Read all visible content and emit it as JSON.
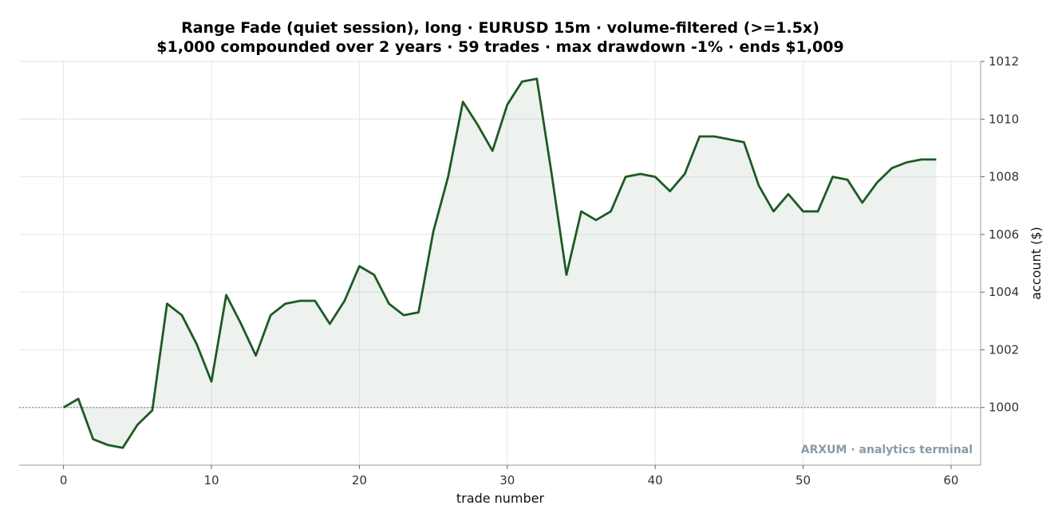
{
  "chart_data": {
    "type": "area",
    "title": "Range Fade (quiet session), long · EURUSD 15m · volume-filtered (>=1.5x)",
    "subtitle": "$1,000 compounded over 2 years · 59 trades · max drawdown -1% · ends $1,009",
    "xlabel": "trade number",
    "ylabel": "account ($)",
    "xlim": [
      -3,
      62
    ],
    "ylim": [
      998,
      1012
    ],
    "xticks": [
      0,
      10,
      20,
      30,
      40,
      50,
      60
    ],
    "yticks": [
      1000,
      1002,
      1004,
      1006,
      1008,
      1010,
      1012
    ],
    "baseline": 1000,
    "grid": true,
    "y_axis_side": "right",
    "x": [
      0,
      1,
      2,
      3,
      4,
      5,
      6,
      7,
      8,
      9,
      10,
      11,
      12,
      13,
      14,
      15,
      16,
      17,
      18,
      19,
      20,
      21,
      22,
      23,
      24,
      25,
      26,
      27,
      28,
      29,
      30,
      31,
      32,
      33,
      34,
      35,
      36,
      37,
      38,
      39,
      40,
      41,
      42,
      43,
      44,
      45,
      46,
      47,
      48,
      49,
      50,
      51,
      52,
      53,
      54,
      55,
      56,
      57,
      58,
      59
    ],
    "series": [
      {
        "values": [
          1000.0,
          1000.3,
          998.9,
          998.7,
          998.6,
          999.4,
          999.9,
          1003.6,
          1003.2,
          1002.2,
          1000.9,
          1003.9,
          1002.9,
          1001.8,
          1003.2,
          1003.6,
          1003.7,
          1003.7,
          1002.9,
          1003.7,
          1004.9,
          1004.6,
          1003.6,
          1003.2,
          1003.3,
          1006.1,
          1008.0,
          1010.6,
          1009.8,
          1008.9,
          1010.5,
          1011.3,
          1011.4,
          1008.1,
          1004.6,
          1006.8,
          1006.5,
          1006.8,
          1008.0,
          1008.1,
          1008.0,
          1007.5,
          1008.1,
          1009.4,
          1009.4,
          1009.3,
          1009.2,
          1007.7,
          1006.8,
          1007.4,
          1006.8,
          1006.8,
          1008.0,
          1007.9,
          1007.1,
          1007.8,
          1008.3,
          1008.5,
          1008.6,
          1008.6
        ],
        "color": "#1e5a24"
      }
    ]
  },
  "watermark": "ARXUM · analytics terminal"
}
